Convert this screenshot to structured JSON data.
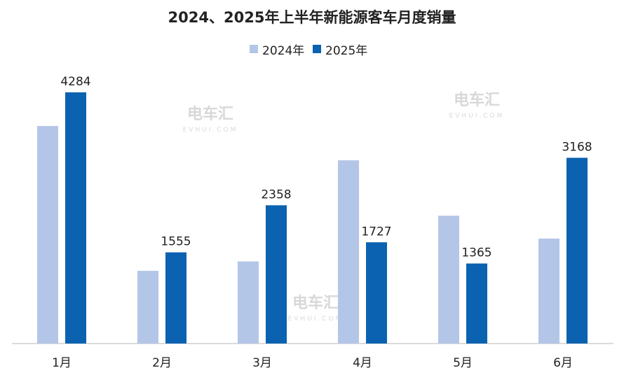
{
  "chart_data": {
    "type": "bar",
    "title": "2024、2025年上半年新能源客车月度销量",
    "categories": [
      "1月",
      "2月",
      "3月",
      "4月",
      "5月",
      "6月"
    ],
    "series": [
      {
        "name": "2024年",
        "color": "#b4c6e7",
        "values": [
          3710,
          1240,
          1400,
          3125,
          2180,
          1790
        ],
        "labeled": false
      },
      {
        "name": "2025年",
        "color": "#0b62b0",
        "values": [
          4284,
          1555,
          2358,
          1727,
          1365,
          3168
        ],
        "labeled": true
      }
    ],
    "xlabel": "",
    "ylabel": "",
    "ylim": [
      0,
      4300
    ],
    "grid": false,
    "legend": "top-center"
  },
  "watermark": {
    "brand": "电车汇",
    "site": "EVHUI.COM"
  }
}
